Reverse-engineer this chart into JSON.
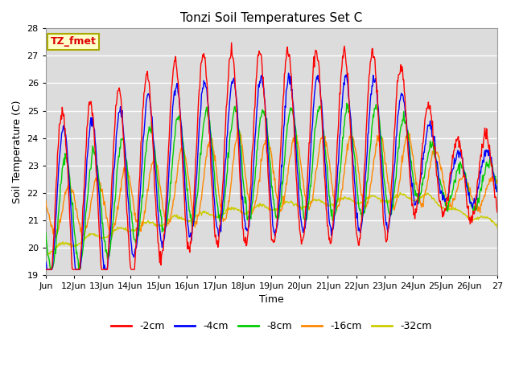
{
  "title": "Tonzi Soil Temperatures Set C",
  "xlabel": "Time",
  "ylabel": "Soil Temperature (C)",
  "ylim": [
    19.0,
    28.0
  ],
  "yticks": [
    19.0,
    20.0,
    21.0,
    22.0,
    23.0,
    24.0,
    25.0,
    26.0,
    27.0,
    28.0
  ],
  "xtick_labels": [
    "Jun",
    "12Jun",
    "13Jun",
    "14Jun",
    "15Jun",
    "16Jun",
    "17Jun",
    "18Jun",
    "19Jun",
    "20Jun",
    "21Jun",
    "22Jun",
    "23Jun",
    "24Jun",
    "25Jun",
    "26Jun",
    "27"
  ],
  "annotation_text": "TZ_fmet",
  "annotation_bg": "#ffffcc",
  "annotation_border": "#aaaa00",
  "line_colors": {
    "-2cm": "#ff0000",
    "-4cm": "#0000ff",
    "-8cm": "#00cc00",
    "-16cm": "#ff8800",
    "-32cm": "#cccc00"
  },
  "legend_labels": [
    "-2cm",
    "-4cm",
    "-8cm",
    "-16cm",
    "-32cm"
  ],
  "plot_bg": "#dcdcdc",
  "fig_bg": "#ffffff"
}
